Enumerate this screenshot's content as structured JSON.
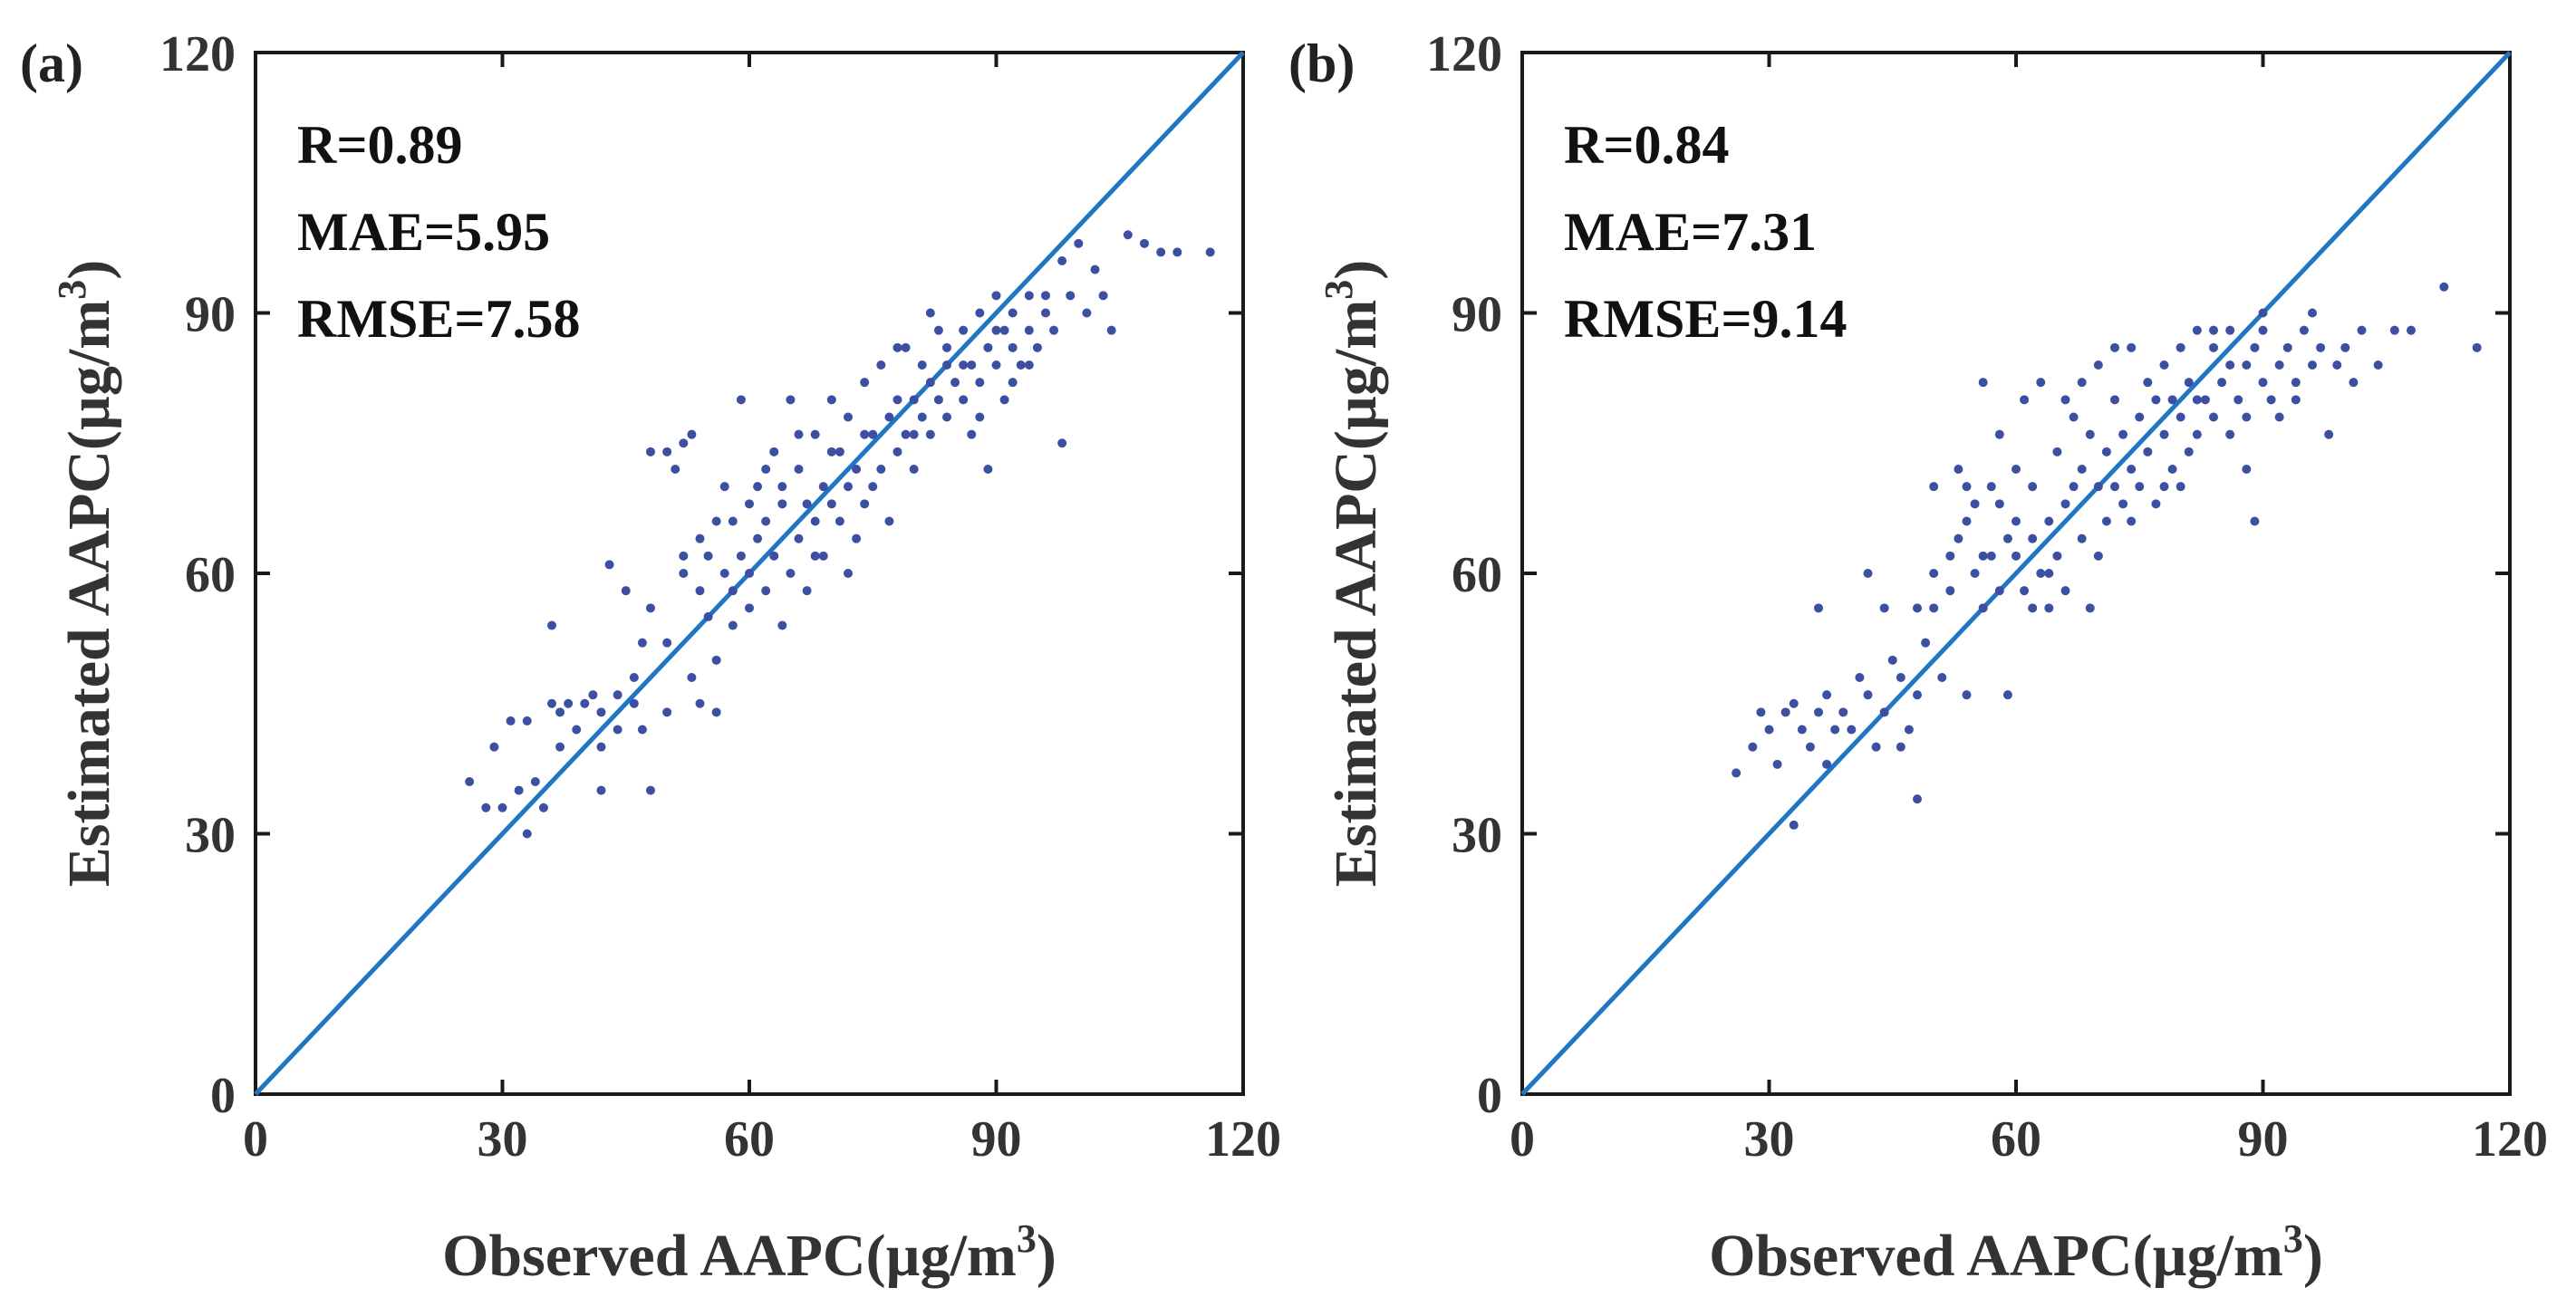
{
  "chart_data": [
    {
      "type": "scatter",
      "panel_label": "(a)",
      "xlabel": "Observed AAPC(µg/m",
      "xlabel_sup": "3",
      "xlabel_end": ")",
      "ylabel": "Estimated AAPC(µg/m",
      "ylabel_sup": "3",
      "ylabel_end": ")",
      "xlim": [
        0,
        120
      ],
      "ylim": [
        0,
        120
      ],
      "xticks": [
        "0",
        "30",
        "60",
        "90",
        "120"
      ],
      "yticks": [
        "0",
        "30",
        "60",
        "90",
        "120"
      ],
      "stats": [
        "R=0.89",
        "MAE=5.95",
        "RMSE=7.58"
      ],
      "reference_line": {
        "type": "1:1",
        "from": [
          0,
          0
        ],
        "to": [
          120,
          120
        ],
        "color": "#1f77c4"
      },
      "point_color": "#3d4fa3",
      "points": [
        [
          26,
          36
        ],
        [
          28,
          33
        ],
        [
          29,
          40
        ],
        [
          30,
          33
        ],
        [
          31,
          43
        ],
        [
          32,
          35
        ],
        [
          33,
          30
        ],
        [
          33,
          43
        ],
        [
          34,
          36
        ],
        [
          35,
          33
        ],
        [
          36,
          45
        ],
        [
          36,
          54
        ],
        [
          37,
          40
        ],
        [
          37,
          44
        ],
        [
          38,
          45
        ],
        [
          39,
          42
        ],
        [
          40,
          45
        ],
        [
          41,
          46
        ],
        [
          42,
          40
        ],
        [
          42,
          44
        ],
        [
          42,
          35
        ],
        [
          43,
          61
        ],
        [
          44,
          42
        ],
        [
          44,
          46
        ],
        [
          45,
          58
        ],
        [
          46,
          45
        ],
        [
          47,
          52
        ],
        [
          47,
          42
        ],
        [
          48,
          74
        ],
        [
          48,
          35
        ],
        [
          50,
          74
        ],
        [
          50,
          44
        ],
        [
          51,
          72
        ],
        [
          52,
          75
        ],
        [
          52,
          60
        ],
        [
          53,
          76
        ],
        [
          53,
          48
        ],
        [
          54,
          64
        ],
        [
          54,
          45
        ],
        [
          55,
          62
        ],
        [
          55,
          55
        ],
        [
          56,
          66
        ],
        [
          56,
          44
        ],
        [
          57,
          60
        ],
        [
          57,
          70
        ],
        [
          58,
          58
        ],
        [
          58,
          66
        ],
        [
          59,
          62
        ],
        [
          59,
          80
        ],
        [
          60,
          60
        ],
        [
          60,
          56
        ],
        [
          61,
          64
        ],
        [
          61,
          70
        ],
        [
          62,
          58
        ],
        [
          62,
          66
        ],
        [
          63,
          62
        ],
        [
          63,
          74
        ],
        [
          64,
          54
        ],
        [
          64,
          68
        ],
        [
          65,
          60
        ],
        [
          65,
          80
        ],
        [
          66,
          64
        ],
        [
          66,
          72
        ],
        [
          67,
          58
        ],
        [
          67,
          68
        ],
        [
          68,
          66
        ],
        [
          68,
          76
        ],
        [
          69,
          62
        ],
        [
          69,
          70
        ],
        [
          70,
          68
        ],
        [
          70,
          80
        ],
        [
          71,
          66
        ],
        [
          71,
          74
        ],
        [
          72,
          70
        ],
        [
          72,
          78
        ],
        [
          73,
          64
        ],
        [
          73,
          72
        ],
        [
          74,
          68
        ],
        [
          74,
          82
        ],
        [
          75,
          70
        ],
        [
          75,
          76
        ],
        [
          76,
          72
        ],
        [
          76,
          84
        ],
        [
          77,
          66
        ],
        [
          77,
          78
        ],
        [
          78,
          74
        ],
        [
          78,
          80
        ],
        [
          79,
          76
        ],
        [
          79,
          86
        ],
        [
          80,
          72
        ],
        [
          80,
          80
        ],
        [
          81,
          78
        ],
        [
          81,
          84
        ],
        [
          82,
          76
        ],
        [
          82,
          82
        ],
        [
          83,
          80
        ],
        [
          83,
          88
        ],
        [
          84,
          78
        ],
        [
          84,
          84
        ],
        [
          85,
          82
        ],
        [
          86,
          80
        ],
        [
          86,
          88
        ],
        [
          87,
          76
        ],
        [
          87,
          84
        ],
        [
          88,
          82
        ],
        [
          88,
          90
        ],
        [
          89,
          86
        ],
        [
          89,
          72
        ],
        [
          90,
          84
        ],
        [
          90,
          92
        ],
        [
          91,
          80
        ],
        [
          91,
          88
        ],
        [
          92,
          86
        ],
        [
          92,
          90
        ],
        [
          93,
          84
        ],
        [
          94,
          88
        ],
        [
          94,
          92
        ],
        [
          95,
          86
        ],
        [
          96,
          90
        ],
        [
          97,
          88
        ],
        [
          98,
          96
        ],
        [
          98,
          75
        ],
        [
          99,
          92
        ],
        [
          100,
          98
        ],
        [
          101,
          90
        ],
        [
          102,
          95
        ],
        [
          103,
          92
        ],
        [
          104,
          88
        ],
        [
          106,
          99
        ],
        [
          108,
          98
        ],
        [
          110,
          97
        ],
        [
          112,
          97
        ],
        [
          116,
          97
        ],
        [
          64,
          70
        ],
        [
          66,
          76
        ],
        [
          68,
          62
        ],
        [
          70,
          74
        ],
        [
          72,
          60
        ],
        [
          74,
          76
        ],
        [
          62,
          72
        ],
        [
          60,
          68
        ],
        [
          58,
          54
        ],
        [
          56,
          50
        ],
        [
          54,
          58
        ],
        [
          52,
          62
        ],
        [
          50,
          52
        ],
        [
          48,
          56
        ],
        [
          46,
          48
        ],
        [
          78,
          86
        ],
        [
          80,
          76
        ],
        [
          82,
          90
        ],
        [
          84,
          86
        ],
        [
          86,
          84
        ],
        [
          88,
          78
        ],
        [
          90,
          88
        ],
        [
          92,
          82
        ],
        [
          94,
          84
        ],
        [
          96,
          92
        ]
      ]
    },
    {
      "type": "scatter",
      "panel_label": "(b)",
      "xlabel": "Observed AAPC(µg/m",
      "xlabel_sup": "3",
      "xlabel_end": ")",
      "ylabel": "Estimated AAPC(µg/m",
      "ylabel_sup": "3",
      "ylabel_end": ")",
      "xlim": [
        0,
        120
      ],
      "ylim": [
        0,
        120
      ],
      "xticks": [
        "0",
        "30",
        "60",
        "90",
        "120"
      ],
      "yticks": [
        "0",
        "30",
        "60",
        "90",
        "120"
      ],
      "stats": [
        "R=0.84",
        "MAE=7.31",
        "RMSE=9.14"
      ],
      "reference_line": {
        "type": "1:1",
        "from": [
          0,
          0
        ],
        "to": [
          120,
          120
        ],
        "color": "#1f77c4"
      },
      "point_color": "#3d4fa3",
      "points": [
        [
          26,
          37
        ],
        [
          28,
          40
        ],
        [
          29,
          44
        ],
        [
          30,
          42
        ],
        [
          31,
          38
        ],
        [
          32,
          44
        ],
        [
          33,
          31
        ],
        [
          33,
          45
        ],
        [
          34,
          42
        ],
        [
          35,
          40
        ],
        [
          36,
          44
        ],
        [
          36,
          56
        ],
        [
          37,
          38
        ],
        [
          37,
          46
        ],
        [
          38,
          42
        ],
        [
          39,
          44
        ],
        [
          40,
          42
        ],
        [
          41,
          48
        ],
        [
          42,
          46
        ],
        [
          42,
          60
        ],
        [
          43,
          40
        ],
        [
          44,
          56
        ],
        [
          45,
          50
        ],
        [
          46,
          48
        ],
        [
          47,
          42
        ],
        [
          48,
          34
        ],
        [
          48,
          56
        ],
        [
          49,
          52
        ],
        [
          50,
          56
        ],
        [
          50,
          70
        ],
        [
          51,
          48
        ],
        [
          52,
          62
        ],
        [
          53,
          64
        ],
        [
          53,
          72
        ],
        [
          54,
          66
        ],
        [
          54,
          46
        ],
        [
          55,
          60
        ],
        [
          55,
          68
        ],
        [
          56,
          56
        ],
        [
          56,
          82
        ],
        [
          57,
          62
        ],
        [
          57,
          70
        ],
        [
          58,
          58
        ],
        [
          58,
          76
        ],
        [
          59,
          64
        ],
        [
          59,
          46
        ],
        [
          60,
          62
        ],
        [
          60,
          72
        ],
        [
          61,
          58
        ],
        [
          61,
          80
        ],
        [
          62,
          64
        ],
        [
          62,
          70
        ],
        [
          63,
          60
        ],
        [
          63,
          82
        ],
        [
          64,
          66
        ],
        [
          64,
          56
        ],
        [
          65,
          62
        ],
        [
          65,
          74
        ],
        [
          66,
          68
        ],
        [
          66,
          58
        ],
        [
          67,
          70
        ],
        [
          67,
          78
        ],
        [
          68,
          64
        ],
        [
          68,
          72
        ],
        [
          69,
          76
        ],
        [
          69,
          56
        ],
        [
          70,
          70
        ],
        [
          70,
          84
        ],
        [
          71,
          66
        ],
        [
          71,
          74
        ],
        [
          72,
          70
        ],
        [
          72,
          80
        ],
        [
          73,
          68
        ],
        [
          73,
          76
        ],
        [
          74,
          72
        ],
        [
          74,
          86
        ],
        [
          75,
          70
        ],
        [
          75,
          78
        ],
        [
          76,
          74
        ],
        [
          76,
          82
        ],
        [
          77,
          68
        ],
        [
          77,
          80
        ],
        [
          78,
          76
        ],
        [
          78,
          84
        ],
        [
          79,
          72
        ],
        [
          79,
          80
        ],
        [
          80,
          78
        ],
        [
          80,
          86
        ],
        [
          81,
          74
        ],
        [
          81,
          82
        ],
        [
          82,
          76
        ],
        [
          82,
          88
        ],
        [
          83,
          80
        ],
        [
          84,
          78
        ],
        [
          84,
          86
        ],
        [
          85,
          82
        ],
        [
          86,
          76
        ],
        [
          86,
          88
        ],
        [
          87,
          80
        ],
        [
          88,
          84
        ],
        [
          88,
          72
        ],
        [
          89,
          86
        ],
        [
          89,
          66
        ],
        [
          90,
          82
        ],
        [
          90,
          88
        ],
        [
          91,
          80
        ],
        [
          92,
          84
        ],
        [
          93,
          86
        ],
        [
          94,
          82
        ],
        [
          95,
          88
        ],
        [
          96,
          84
        ],
        [
          97,
          86
        ],
        [
          98,
          76
        ],
        [
          99,
          84
        ],
        [
          100,
          86
        ],
        [
          101,
          82
        ],
        [
          102,
          88
        ],
        [
          104,
          84
        ],
        [
          106,
          88
        ],
        [
          108,
          88
        ],
        [
          112,
          93
        ],
        [
          116,
          86
        ],
        [
          60,
          66
        ],
        [
          62,
          56
        ],
        [
          64,
          60
        ],
        [
          66,
          80
        ],
        [
          68,
          82
        ],
        [
          70,
          62
        ],
        [
          72,
          86
        ],
        [
          74,
          66
        ],
        [
          58,
          68
        ],
        [
          56,
          62
        ],
        [
          54,
          70
        ],
        [
          52,
          58
        ],
        [
          50,
          60
        ],
        [
          48,
          46
        ],
        [
          46,
          40
        ],
        [
          44,
          44
        ],
        [
          78,
          70
        ],
        [
          80,
          70
        ],
        [
          82,
          80
        ],
        [
          84,
          88
        ],
        [
          86,
          84
        ],
        [
          88,
          78
        ],
        [
          90,
          90
        ],
        [
          92,
          78
        ],
        [
          94,
          80
        ],
        [
          96,
          90
        ]
      ]
    }
  ]
}
